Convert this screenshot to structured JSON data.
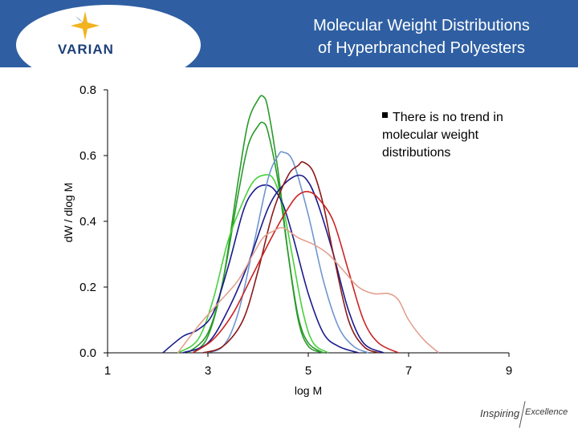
{
  "header": {
    "title_line1": "Molecular Weight Distributions",
    "title_line2": "of Hyperbranched Polyesters",
    "logo_text": "VARIAN"
  },
  "note": {
    "text": "There is no trend in molecular weight distributions"
  },
  "footer": {
    "tagline_part1": "Inspiring",
    "tagline_part2": "Excellence"
  },
  "colors": {
    "header_bg": "#2f5fa2",
    "blue": "#1a1a8c",
    "lightblue": "#6f95d0",
    "green": "#2a9a2a",
    "lightgreen": "#47d13c",
    "darkred": "#8b1a1a",
    "red": "#cc2222",
    "salmon": "#e3a090"
  },
  "chart_data": {
    "type": "line",
    "xlabel": "log M",
    "ylabel": "dW / dlog M",
    "xlim": [
      1,
      9
    ],
    "ylim": [
      0,
      0.8
    ],
    "x_ticks": [
      {
        "value": 1,
        "label": "1"
      },
      {
        "value": 3,
        "label": "3"
      },
      {
        "value": 5,
        "label": "5"
      },
      {
        "value": 7,
        "label": "7"
      },
      {
        "value": 9,
        "label": "9"
      }
    ],
    "y_ticks": [
      {
        "value": 0,
        "label": "0.0"
      },
      {
        "value": 0.2,
        "label": "0.2"
      },
      {
        "value": 0.4,
        "label": "0.4"
      },
      {
        "value": 0.6,
        "label": "0.6"
      },
      {
        "value": 0.8,
        "label": "0.8"
      }
    ],
    "series": [
      {
        "name": "dark green",
        "color": "#2a9a2a",
        "x": [
          2.7,
          3.0,
          3.3,
          3.6,
          3.8,
          4.0,
          4.1,
          4.2,
          4.4,
          4.6,
          4.8,
          5.0,
          5.3
        ],
        "y": [
          0.0,
          0.05,
          0.22,
          0.52,
          0.7,
          0.77,
          0.78,
          0.74,
          0.55,
          0.3,
          0.1,
          0.02,
          0.0
        ]
      },
      {
        "name": "green",
        "color": "#2a9a2a",
        "x": [
          2.6,
          3.0,
          3.3,
          3.6,
          3.8,
          4.0,
          4.1,
          4.2,
          4.4,
          4.6,
          4.8,
          5.0,
          5.3
        ],
        "y": [
          0.0,
          0.06,
          0.22,
          0.48,
          0.63,
          0.69,
          0.7,
          0.67,
          0.52,
          0.3,
          0.11,
          0.03,
          0.0
        ]
      },
      {
        "name": "light green",
        "color": "#47d13c",
        "x": [
          2.4,
          2.8,
          3.1,
          3.4,
          3.7,
          3.9,
          4.1,
          4.3,
          4.5,
          4.7,
          4.9,
          5.1,
          5.4
        ],
        "y": [
          0.0,
          0.04,
          0.16,
          0.34,
          0.46,
          0.52,
          0.54,
          0.53,
          0.44,
          0.28,
          0.12,
          0.03,
          0.0
        ]
      },
      {
        "name": "dark blue",
        "color": "#1a1a8c",
        "x": [
          2.1,
          2.5,
          2.8,
          3.1,
          3.4,
          3.7,
          3.9,
          4.1,
          4.3,
          4.5,
          4.7,
          5.0,
          5.3,
          5.6,
          6.0
        ],
        "y": [
          0.0,
          0.05,
          0.07,
          0.12,
          0.26,
          0.43,
          0.49,
          0.51,
          0.5,
          0.45,
          0.35,
          0.18,
          0.06,
          0.02,
          0.0
        ]
      },
      {
        "name": "light blue",
        "color": "#6f95d0",
        "x": [
          2.9,
          3.3,
          3.6,
          3.9,
          4.2,
          4.4,
          4.5,
          4.7,
          5.0,
          5.3,
          5.6,
          5.9,
          6.2
        ],
        "y": [
          0.0,
          0.02,
          0.12,
          0.32,
          0.53,
          0.6,
          0.61,
          0.58,
          0.42,
          0.22,
          0.08,
          0.02,
          0.0
        ]
      },
      {
        "name": "navy",
        "color": "#1a1a8c",
        "x": [
          2.5,
          3.0,
          3.4,
          3.8,
          4.2,
          4.5,
          4.8,
          5.0,
          5.2,
          5.5,
          5.8,
          6.1,
          6.5
        ],
        "y": [
          0.0,
          0.03,
          0.13,
          0.27,
          0.44,
          0.51,
          0.54,
          0.52,
          0.45,
          0.3,
          0.13,
          0.03,
          0.0
        ]
      },
      {
        "name": "dark red",
        "color": "#8b1a1a",
        "x": [
          2.9,
          3.3,
          3.7,
          4.0,
          4.3,
          4.6,
          4.8,
          4.9,
          5.1,
          5.3,
          5.5,
          5.8,
          6.1,
          6.4
        ],
        "y": [
          0.0,
          0.02,
          0.1,
          0.25,
          0.43,
          0.54,
          0.57,
          0.58,
          0.55,
          0.45,
          0.3,
          0.1,
          0.02,
          0.0
        ]
      },
      {
        "name": "red",
        "color": "#cc2222",
        "x": [
          2.7,
          3.1,
          3.5,
          3.9,
          4.3,
          4.6,
          4.8,
          5.0,
          5.2,
          5.5,
          5.8,
          6.1,
          6.4,
          6.8
        ],
        "y": [
          0.0,
          0.04,
          0.12,
          0.24,
          0.36,
          0.44,
          0.48,
          0.49,
          0.47,
          0.4,
          0.25,
          0.1,
          0.03,
          0.0
        ]
      },
      {
        "name": "salmon",
        "color": "#e3a090",
        "x": [
          2.4,
          2.8,
          3.2,
          3.6,
          3.9,
          4.1,
          4.3,
          4.5,
          4.8,
          5.1,
          5.4,
          5.7,
          6.0,
          6.3,
          6.6,
          6.8,
          7.0,
          7.3,
          7.6
        ],
        "y": [
          0.0,
          0.08,
          0.15,
          0.22,
          0.3,
          0.35,
          0.37,
          0.38,
          0.35,
          0.33,
          0.3,
          0.25,
          0.2,
          0.18,
          0.18,
          0.16,
          0.1,
          0.04,
          0.0
        ]
      }
    ]
  }
}
